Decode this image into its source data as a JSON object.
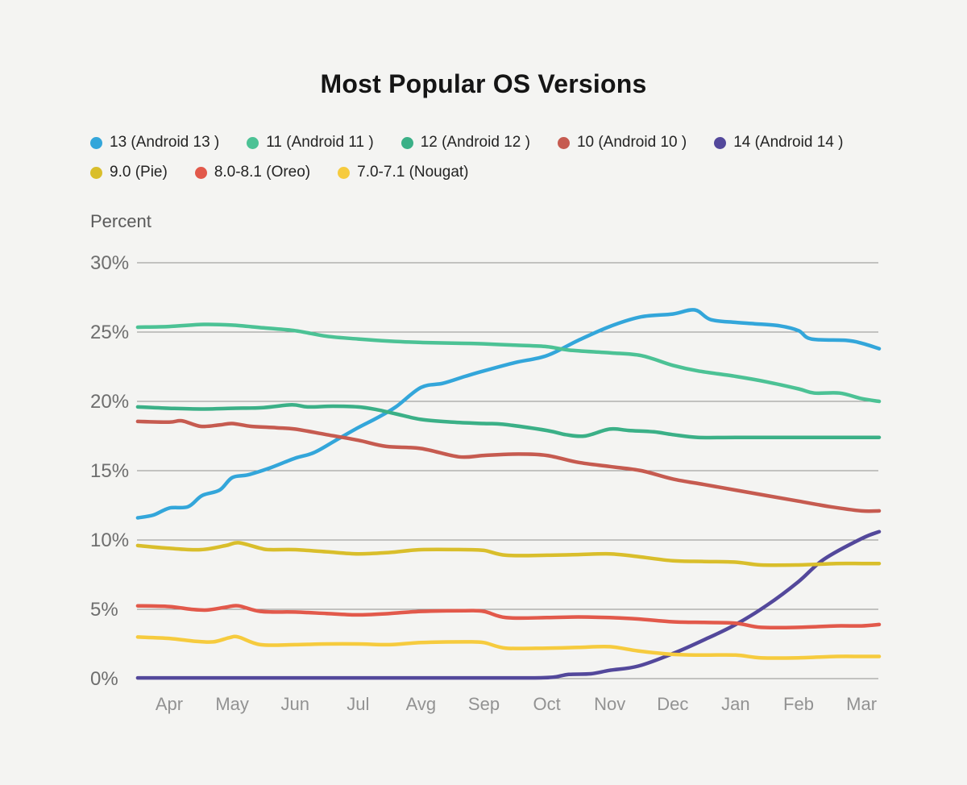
{
  "page": {
    "colors": {
      "background": "#f4f4f2",
      "title_text": "#151515",
      "legend_text": "#232323",
      "y_tick_text": "#6e6e6e",
      "x_tick_text": "#929292",
      "axis_title_text": "#5a5a5a",
      "gridline": "#8f8f8f"
    }
  },
  "chart_data": {
    "type": "line",
    "title": "Most Popular OS Versions",
    "ylabel": "Percent",
    "xlabel": "",
    "x_tick_labels": [
      "Apr",
      "May",
      "Jun",
      "Jul",
      "Avg",
      "Sep",
      "Oct",
      "Nov",
      "Dec",
      "Jan",
      "Feb",
      "Mar"
    ],
    "y_tick_labels": [
      "30%",
      "25%",
      "20%",
      "15%",
      "10%",
      "5%",
      "0%"
    ],
    "ylim": [
      0,
      30
    ],
    "y_step": 5,
    "grid": true,
    "legend_position": "top-left, two rows",
    "x_units": "month index, Apr=0 … Mar=11; fractional x = intra-month sample; curve extends from -0.5 to 11.28",
    "y_units": "percent",
    "series": [
      {
        "name": "13 (Android 13 )",
        "color": "#33a6da",
        "points": [
          [
            -0.5,
            11.6
          ],
          [
            -0.25,
            11.8
          ],
          [
            0,
            12.3
          ],
          [
            0.3,
            12.4
          ],
          [
            0.52,
            13.2
          ],
          [
            0.8,
            13.6
          ],
          [
            1,
            14.5
          ],
          [
            1.25,
            14.7
          ],
          [
            1.6,
            15.2
          ],
          [
            2,
            15.9
          ],
          [
            2.3,
            16.3
          ],
          [
            2.65,
            17.2
          ],
          [
            3,
            18.1
          ],
          [
            3.3,
            18.8
          ],
          [
            3.6,
            19.6
          ],
          [
            4,
            21.0
          ],
          [
            4.35,
            21.3
          ],
          [
            4.7,
            21.8
          ],
          [
            5,
            22.2
          ],
          [
            5.5,
            22.8
          ],
          [
            6,
            23.3
          ],
          [
            6.5,
            24.4
          ],
          [
            7,
            25.4
          ],
          [
            7.5,
            26.1
          ],
          [
            8,
            26.3
          ],
          [
            8.35,
            26.6
          ],
          [
            8.6,
            25.9
          ],
          [
            9,
            25.7
          ],
          [
            9.3,
            25.6
          ],
          [
            9.7,
            25.45
          ],
          [
            10,
            25.1
          ],
          [
            10.2,
            24.5
          ],
          [
            10.75,
            24.4
          ],
          [
            11,
            24.2
          ],
          [
            11.28,
            23.8
          ]
        ]
      },
      {
        "name": "11 (Android 11 )",
        "color": "#4cc295",
        "points": [
          [
            -0.5,
            25.35
          ],
          [
            0,
            25.4
          ],
          [
            0.55,
            25.55
          ],
          [
            1,
            25.5
          ],
          [
            1.5,
            25.3
          ],
          [
            2,
            25.1
          ],
          [
            2.5,
            24.7
          ],
          [
            3,
            24.5
          ],
          [
            3.5,
            24.35
          ],
          [
            4,
            24.25
          ],
          [
            4.5,
            24.2
          ],
          [
            5,
            24.15
          ],
          [
            5.5,
            24.05
          ],
          [
            6,
            23.95
          ],
          [
            6.35,
            23.7
          ],
          [
            7,
            23.5
          ],
          [
            7.5,
            23.3
          ],
          [
            8,
            22.6
          ],
          [
            8.4,
            22.2
          ],
          [
            9,
            21.8
          ],
          [
            9.5,
            21.4
          ],
          [
            10,
            20.9
          ],
          [
            10.25,
            20.6
          ],
          [
            10.65,
            20.6
          ],
          [
            11,
            20.2
          ],
          [
            11.28,
            20.0
          ]
        ]
      },
      {
        "name": "12 (Android 12 )",
        "color": "#3bb087",
        "points": [
          [
            -0.5,
            19.6
          ],
          [
            0,
            19.5
          ],
          [
            0.5,
            19.45
          ],
          [
            1,
            19.5
          ],
          [
            1.5,
            19.55
          ],
          [
            1.95,
            19.75
          ],
          [
            2.2,
            19.6
          ],
          [
            2.6,
            19.65
          ],
          [
            3,
            19.6
          ],
          [
            3.3,
            19.4
          ],
          [
            3.6,
            19.1
          ],
          [
            4,
            18.7
          ],
          [
            4.5,
            18.5
          ],
          [
            5,
            18.4
          ],
          [
            5.3,
            18.35
          ],
          [
            6,
            17.9
          ],
          [
            6.3,
            17.6
          ],
          [
            6.6,
            17.5
          ],
          [
            7,
            18.0
          ],
          [
            7.3,
            17.9
          ],
          [
            7.7,
            17.8
          ],
          [
            8,
            17.6
          ],
          [
            8.4,
            17.4
          ],
          [
            9,
            17.4
          ],
          [
            10,
            17.4
          ],
          [
            11,
            17.4
          ],
          [
            11.28,
            17.4
          ]
        ]
      },
      {
        "name": "10 (Android 10 )",
        "color": "#c65b50",
        "points": [
          [
            -0.5,
            18.55
          ],
          [
            0,
            18.5
          ],
          [
            0.2,
            18.6
          ],
          [
            0.5,
            18.2
          ],
          [
            0.8,
            18.3
          ],
          [
            1,
            18.4
          ],
          [
            1.3,
            18.2
          ],
          [
            1.7,
            18.1
          ],
          [
            2,
            18.0
          ],
          [
            2.5,
            17.6
          ],
          [
            3,
            17.2
          ],
          [
            3.45,
            16.75
          ],
          [
            4,
            16.6
          ],
          [
            4.6,
            16.0
          ],
          [
            5,
            16.1
          ],
          [
            5.55,
            16.2
          ],
          [
            6,
            16.1
          ],
          [
            6.5,
            15.6
          ],
          [
            7,
            15.3
          ],
          [
            7.5,
            15.0
          ],
          [
            8,
            14.4
          ],
          [
            8.5,
            14.0
          ],
          [
            9,
            13.6
          ],
          [
            9.5,
            13.2
          ],
          [
            10,
            12.8
          ],
          [
            10.5,
            12.4
          ],
          [
            11,
            12.1
          ],
          [
            11.28,
            12.1
          ]
        ]
      },
      {
        "name": "14 (Android 14 )",
        "color": "#53489b",
        "points": [
          [
            -0.5,
            0.05
          ],
          [
            0,
            0.05
          ],
          [
            1,
            0.05
          ],
          [
            2,
            0.05
          ],
          [
            3,
            0.05
          ],
          [
            4,
            0.05
          ],
          [
            5,
            0.05
          ],
          [
            5.8,
            0.05
          ],
          [
            6.1,
            0.1
          ],
          [
            6.35,
            0.3
          ],
          [
            6.7,
            0.35
          ],
          [
            7,
            0.6
          ],
          [
            7.45,
            0.9
          ],
          [
            8,
            1.8
          ],
          [
            8.5,
            2.8
          ],
          [
            9,
            3.9
          ],
          [
            9.5,
            5.3
          ],
          [
            10,
            7.0
          ],
          [
            10.4,
            8.6
          ],
          [
            11,
            10.1
          ],
          [
            11.28,
            10.6
          ]
        ]
      },
      {
        "name": "9.0 (Pie)",
        "color": "#d9be2b",
        "points": [
          [
            -0.5,
            9.6
          ],
          [
            0,
            9.4
          ],
          [
            0.5,
            9.3
          ],
          [
            0.9,
            9.6
          ],
          [
            1.1,
            9.8
          ],
          [
            1.45,
            9.4
          ],
          [
            1.6,
            9.3
          ],
          [
            2,
            9.3
          ],
          [
            2.5,
            9.15
          ],
          [
            3,
            9.0
          ],
          [
            3.5,
            9.1
          ],
          [
            4,
            9.3
          ],
          [
            4.7,
            9.3
          ],
          [
            5,
            9.25
          ],
          [
            5.35,
            8.9
          ],
          [
            6,
            8.9
          ],
          [
            6.5,
            8.95
          ],
          [
            7,
            9.0
          ],
          [
            7.45,
            8.8
          ],
          [
            8,
            8.5
          ],
          [
            8.5,
            8.45
          ],
          [
            9,
            8.4
          ],
          [
            9.4,
            8.2
          ],
          [
            10,
            8.2
          ],
          [
            10.6,
            8.3
          ],
          [
            11,
            8.3
          ],
          [
            11.28,
            8.3
          ]
        ]
      },
      {
        "name": "8.0-8.1 (Oreo)",
        "color": "#e2594b",
        "points": [
          [
            -0.5,
            5.25
          ],
          [
            0,
            5.2
          ],
          [
            0.35,
            5.0
          ],
          [
            0.6,
            4.95
          ],
          [
            0.9,
            5.15
          ],
          [
            1.1,
            5.25
          ],
          [
            1.45,
            4.85
          ],
          [
            2,
            4.8
          ],
          [
            2.5,
            4.7
          ],
          [
            3,
            4.6
          ],
          [
            3.5,
            4.7
          ],
          [
            4,
            4.85
          ],
          [
            4.7,
            4.9
          ],
          [
            5,
            4.85
          ],
          [
            5.35,
            4.4
          ],
          [
            6,
            4.4
          ],
          [
            6.5,
            4.45
          ],
          [
            7,
            4.4
          ],
          [
            7.45,
            4.3
          ],
          [
            8,
            4.1
          ],
          [
            8.5,
            4.05
          ],
          [
            9,
            4.0
          ],
          [
            9.4,
            3.7
          ],
          [
            10,
            3.7
          ],
          [
            10.6,
            3.8
          ],
          [
            11,
            3.8
          ],
          [
            11.28,
            3.9
          ]
        ]
      },
      {
        "name": "7.0-7.1 (Nougat)",
        "color": "#f6cb3e",
        "points": [
          [
            -0.5,
            3.0
          ],
          [
            0,
            2.9
          ],
          [
            0.4,
            2.7
          ],
          [
            0.7,
            2.65
          ],
          [
            0.95,
            2.95
          ],
          [
            1.1,
            3.0
          ],
          [
            1.45,
            2.45
          ],
          [
            2,
            2.45
          ],
          [
            2.5,
            2.5
          ],
          [
            3,
            2.5
          ],
          [
            3.5,
            2.45
          ],
          [
            4,
            2.6
          ],
          [
            4.7,
            2.65
          ],
          [
            5,
            2.6
          ],
          [
            5.35,
            2.2
          ],
          [
            6,
            2.2
          ],
          [
            6.5,
            2.25
          ],
          [
            7,
            2.3
          ],
          [
            7.45,
            2.0
          ],
          [
            8,
            1.75
          ],
          [
            8.5,
            1.7
          ],
          [
            9,
            1.7
          ],
          [
            9.4,
            1.5
          ],
          [
            10,
            1.5
          ],
          [
            10.6,
            1.6
          ],
          [
            11,
            1.6
          ],
          [
            11.28,
            1.6
          ]
        ]
      }
    ]
  }
}
